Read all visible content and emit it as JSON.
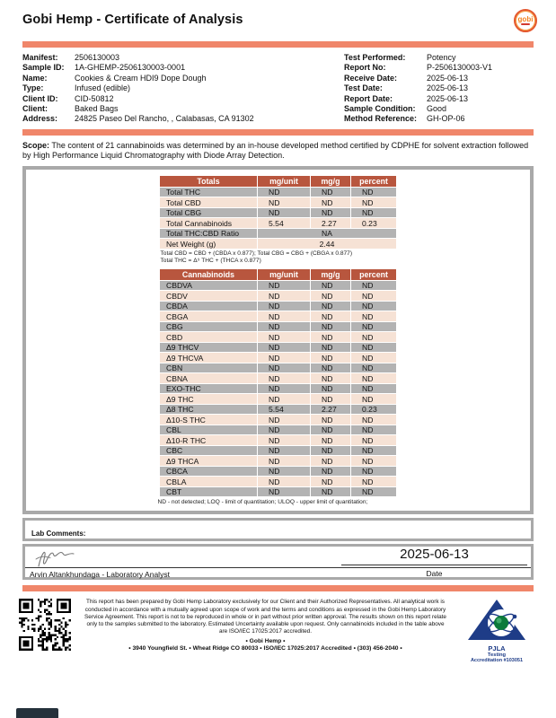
{
  "header": {
    "title": "Gobi Hemp - Certificate of Analysis",
    "logo_text": "gobi"
  },
  "info_left": [
    {
      "label": "Manifest:",
      "value": "2506130003"
    },
    {
      "label": "Sample ID:",
      "value": "1A-GHEMP-2506130003-0001"
    },
    {
      "label": "Name:",
      "value": "Cookies & Cream HDI9 Dope Dough"
    },
    {
      "label": "Type:",
      "value": "Infused (edible)"
    },
    {
      "label": "Client ID:",
      "value": "CID-50812"
    },
    {
      "label": "Client:",
      "value": "Baked Bags"
    },
    {
      "label": "Address:",
      "value": "24825 Paseo Del Rancho, , Calabasas, CA 91302"
    }
  ],
  "info_right": [
    {
      "label": "Test Performed:",
      "value": "Potency"
    },
    {
      "label": "Report No:",
      "value": "P-2506130003-V1"
    },
    {
      "label": "Receive Date:",
      "value": "2025-06-13"
    },
    {
      "label": "Test Date:",
      "value": "2025-06-13"
    },
    {
      "label": "Report Date:",
      "value": "2025-06-13"
    },
    {
      "label": "Sample Condition:",
      "value": "Good"
    },
    {
      "label": "Method Reference:",
      "value": "GH-OP-06"
    }
  ],
  "scope": {
    "label": "Scope:",
    "text": "The content of 21 cannabinoids was determined by an in-house developed method certified by CDPHE for solvent extraction followed by High Performance Liquid Chromatography with Diode Array Detection."
  },
  "totals_table": {
    "headers": [
      "Totals",
      "mg/unit",
      "mg/g",
      "percent"
    ],
    "rows": [
      {
        "name": "Total THC",
        "mg_unit": "ND",
        "mg_g": "ND",
        "percent": "ND"
      },
      {
        "name": "Total CBD",
        "mg_unit": "ND",
        "mg_g": "ND",
        "percent": "ND"
      },
      {
        "name": "Total CBG",
        "mg_unit": "ND",
        "mg_g": "ND",
        "percent": "ND"
      },
      {
        "name": "Total Cannabinoids",
        "mg_unit": "5.54",
        "mg_g": "2.27",
        "percent": "0.23"
      }
    ],
    "span_rows": [
      {
        "name": "Total THC:CBD Ratio",
        "value": "NA"
      },
      {
        "name": "Net Weight (g)",
        "value": "2.44"
      }
    ],
    "footnote1": "Total CBD = CBD + (CBDA x 0.877); Total CBG = CBG + (CBGA x 0.877)",
    "footnote2": "Total THC = Δ⁹ THC + (THCA x 0.877)"
  },
  "cannabinoids_table": {
    "headers": [
      "Cannabinoids",
      "mg/unit",
      "mg/g",
      "percent"
    ],
    "rows": [
      {
        "name": "CBDVA",
        "mg_unit": "ND",
        "mg_g": "ND",
        "percent": "ND"
      },
      {
        "name": "CBDV",
        "mg_unit": "ND",
        "mg_g": "ND",
        "percent": "ND"
      },
      {
        "name": "CBDA",
        "mg_unit": "ND",
        "mg_g": "ND",
        "percent": "ND"
      },
      {
        "name": "CBGA",
        "mg_unit": "ND",
        "mg_g": "ND",
        "percent": "ND"
      },
      {
        "name": "CBG",
        "mg_unit": "ND",
        "mg_g": "ND",
        "percent": "ND"
      },
      {
        "name": "CBD",
        "mg_unit": "ND",
        "mg_g": "ND",
        "percent": "ND"
      },
      {
        "name": "Δ9 THCV",
        "mg_unit": "ND",
        "mg_g": "ND",
        "percent": "ND"
      },
      {
        "name": "Δ9 THCVA",
        "mg_unit": "ND",
        "mg_g": "ND",
        "percent": "ND"
      },
      {
        "name": "CBN",
        "mg_unit": "ND",
        "mg_g": "ND",
        "percent": "ND"
      },
      {
        "name": "CBNA",
        "mg_unit": "ND",
        "mg_g": "ND",
        "percent": "ND"
      },
      {
        "name": "EXO-THC",
        "mg_unit": "ND",
        "mg_g": "ND",
        "percent": "ND"
      },
      {
        "name": "Δ9 THC",
        "mg_unit": "ND",
        "mg_g": "ND",
        "percent": "ND"
      },
      {
        "name": "Δ8 THC",
        "mg_unit": "5.54",
        "mg_g": "2.27",
        "percent": "0.23"
      },
      {
        "name": "Δ10-S THC",
        "mg_unit": "ND",
        "mg_g": "ND",
        "percent": "ND"
      },
      {
        "name": "CBL",
        "mg_unit": "ND",
        "mg_g": "ND",
        "percent": "ND"
      },
      {
        "name": "Δ10-R THC",
        "mg_unit": "ND",
        "mg_g": "ND",
        "percent": "ND"
      },
      {
        "name": "CBC",
        "mg_unit": "ND",
        "mg_g": "ND",
        "percent": "ND"
      },
      {
        "name": "Δ9 THCA",
        "mg_unit": "ND",
        "mg_g": "ND",
        "percent": "ND"
      },
      {
        "name": "CBCA",
        "mg_unit": "ND",
        "mg_g": "ND",
        "percent": "ND"
      },
      {
        "name": "CBLA",
        "mg_unit": "ND",
        "mg_g": "ND",
        "percent": "ND"
      },
      {
        "name": "CBT",
        "mg_unit": "ND",
        "mg_g": "ND",
        "percent": "ND"
      }
    ],
    "footnote": "ND - not detected; LOQ - limit of quantitation; ULOQ - upper limit of quantitation;"
  },
  "lab_comments_label": "Lab Comments:",
  "signature": {
    "date": "2025-06-13",
    "date_label": "Date",
    "analyst": "Arvin Altankhundaga - Laboratory Analyst"
  },
  "footer": {
    "disclaimer": "This report has been prepared by Gobi Hemp Laboratory exclusively for our Client and their Authorized Representatives. All analytical work is conducted in accordance with a mutually agreed upon scope of work and the terms and conditions as expressed in the Gobi Hemp Laboratory Service Agreement. This report is not to be reproduced in whole or in part without prior written approval. The results shown on this report relate only to the samples submitted to the laboratory. Estimated Uncertainty available upon request. Only cannabinoids included in the table above are ISO/IEC 17025:2017 accredited.",
    "brand": "• Gobi Hemp •",
    "address": "• 3940 Youngfield St. • Wheat Ridge CO 80033 • ISO/IEC 17025:2017 Accredited • (303) 456-2040 •",
    "pjla_name": "PJLA",
    "pjla_sub": "Testing",
    "pjla_accreditation": "Accreditation #103051"
  },
  "colors": {
    "accent": "#f0866a",
    "table_header": "#b8563e",
    "row_gray": "#b3b3b3",
    "row_peach": "#f6e2d5"
  }
}
